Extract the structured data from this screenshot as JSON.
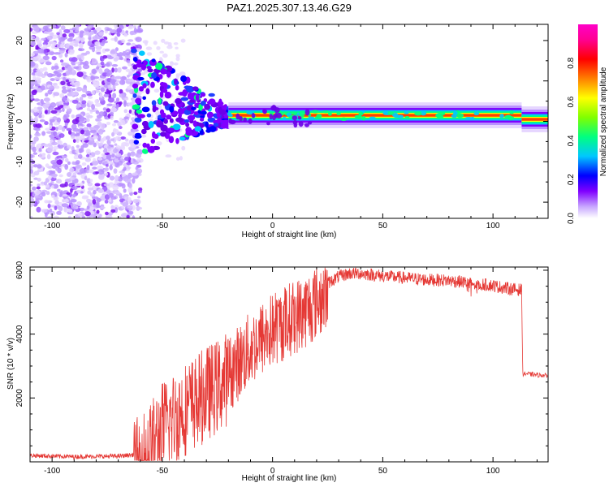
{
  "title": "PAZ1.2025.307.13.46.G29",
  "colors": {
    "snr_line": "#e53935",
    "axis": "#000000",
    "background": "#ffffff"
  },
  "chart_data": [
    {
      "type": "heatmap",
      "name": "spectrogram",
      "xlabel": "Height of straight line (km)",
      "ylabel": "Frequency (Hz)",
      "xlim": [
        -110,
        125
      ],
      "ylim": [
        -24,
        24
      ],
      "xticks": [
        -100,
        -50,
        0,
        50,
        100
      ],
      "yticks": [
        -20,
        -10,
        0,
        10,
        20
      ],
      "colorbar": {
        "label": "Normalized spectral amplitude",
        "range": [
          0,
          1
        ],
        "ticks": [
          "0.0",
          "0.2",
          "0.4",
          "0.6",
          "0.8"
        ],
        "colormap": [
          "#ffffff",
          "#c8a8ff",
          "#8000ff",
          "#0000ff",
          "#00c8ff",
          "#00ff80",
          "#80ff00",
          "#ffff00",
          "#ff8000",
          "#ff0000",
          "#ff0090",
          "#ff00c8"
        ]
      },
      "features": {
        "noise_region_x": [
          -110,
          -63
        ],
        "transition_x": [
          -63,
          -20
        ],
        "signal_region_x": [
          -20,
          125
        ],
        "signal_frequency_hz": 1.5,
        "signal_frequency_after_113km_hz": 0.5
      }
    },
    {
      "type": "line",
      "name": "snr",
      "xlabel": "Height of straight line (km)",
      "ylabel": "SNR (10 * v/v)",
      "xlim": [
        -110,
        125
      ],
      "ylim": [
        0,
        6100
      ],
      "xticks": [
        -100,
        -50,
        0,
        50,
        100
      ],
      "yticks": [
        2000,
        4000,
        6000
      ],
      "series": [
        {
          "name": "SNR",
          "x": [
            -110,
            -100,
            -90,
            -80,
            -70,
            -63,
            -60,
            -55,
            -50,
            -45,
            -40,
            -35,
            -30,
            -25,
            -20,
            -15,
            -10,
            -5,
            0,
            5,
            10,
            15,
            20,
            25,
            30,
            35,
            40,
            50,
            60,
            70,
            80,
            90,
            100,
            105,
            110,
            113,
            113.5,
            115,
            120,
            125
          ],
          "values": [
            200,
            180,
            160,
            170,
            180,
            220,
            500,
            900,
            1500,
            1800,
            2100,
            2300,
            2600,
            2800,
            3100,
            3500,
            3900,
            4200,
            4500,
            4700,
            4900,
            5100,
            5400,
            5600,
            5800,
            5900,
            5900,
            5820,
            5760,
            5700,
            5680,
            5600,
            5520,
            5450,
            5400,
            5380,
            2750,
            2760,
            2720,
            2700
          ]
        }
      ]
    }
  ]
}
